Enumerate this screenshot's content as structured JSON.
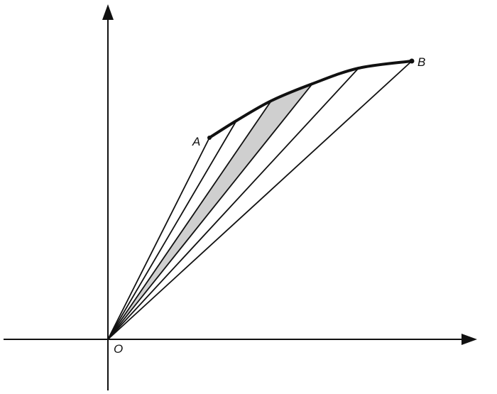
{
  "diagram": {
    "labels": {
      "start_point": "A",
      "end_point": "B",
      "origin": "O"
    },
    "shaded_sector_color": "#cfcfcf",
    "line_color": "#111111"
  }
}
